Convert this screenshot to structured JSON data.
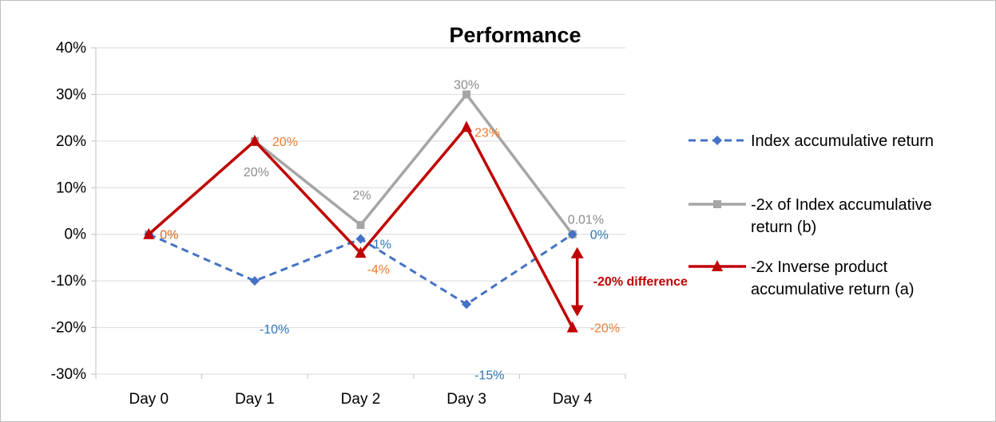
{
  "chart_data": {
    "type": "line",
    "title": "Performance",
    "categories": [
      "Day 0",
      "Day 1",
      "Day 2",
      "Day 3",
      "Day 4"
    ],
    "ylim": [
      -30,
      40
    ],
    "ytick_step": 10,
    "ytick_labels": [
      "40%",
      "30%",
      "20%",
      "10%",
      "0%",
      "-10%",
      "-20%",
      "-30%"
    ],
    "grid": true,
    "legend_position": "right",
    "series": [
      {
        "name": "Index accumulative return",
        "values": [
          0,
          -10,
          -1,
          -15,
          0
        ],
        "labels": [
          "0%",
          "-10%",
          "-1%",
          "-15%",
          "0%"
        ],
        "color": "#4472c4",
        "label_color": "#2e75b6",
        "line_style": "dashed",
        "marker": "diamond"
      },
      {
        "name": "-2x of Index accumulative return (b)",
        "values": [
          0,
          20,
          2,
          30,
          0.01
        ],
        "labels": [
          "0%",
          "20%",
          "2%",
          "30%",
          "0.01%"
        ],
        "color": "#a5a5a5",
        "label_color": "#8c8c8c",
        "line_style": "solid",
        "marker": "square"
      },
      {
        "name": "-2x Inverse product accumulative return (a)",
        "values": [
          0,
          20,
          -4,
          23,
          -20
        ],
        "labels": [
          "0%",
          "20%",
          "-4%",
          "23%",
          "-20%"
        ],
        "color": "#c00000",
        "label_color": "#ed7d31",
        "line_style": "solid",
        "marker": "triangle"
      }
    ],
    "legend_lines": [
      [
        "Index accumulative return"
      ],
      [
        "-2x of Index accumulative",
        "return (b)"
      ],
      [
        "-2x Inverse product",
        "accumulative return (a)"
      ]
    ],
    "annotation": {
      "text": "-20% difference",
      "color": "#c00000",
      "category_index": 4,
      "from": 0,
      "to": -20
    }
  }
}
